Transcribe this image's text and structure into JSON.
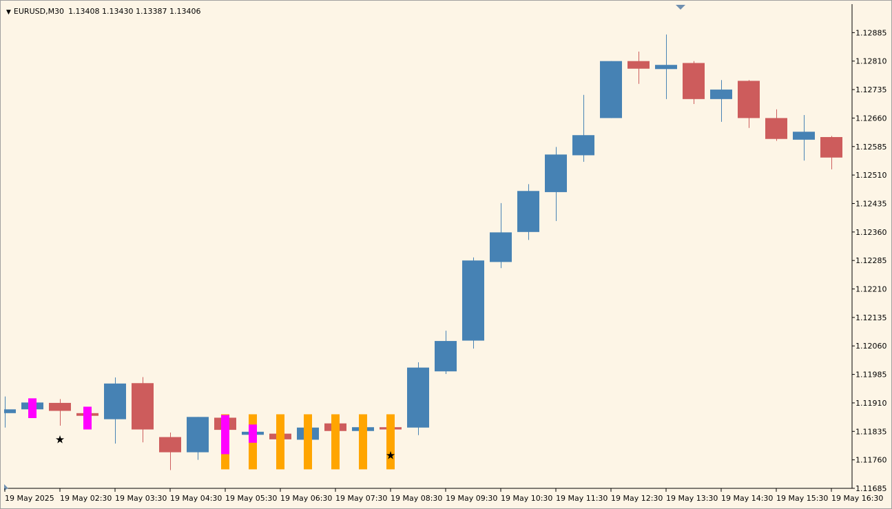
{
  "header": {
    "symbol": "EURUSD,M30",
    "ohlc": "1.13408 1.13430 1.13387 1.13406"
  },
  "colors": {
    "background": "#fdf5e6",
    "bull": "#4682b4",
    "bear": "#cd5c5c",
    "magenta": "#ff00ff",
    "orange": "#ffa500",
    "axis": "#000000"
  },
  "chart_data": {
    "type": "candlestick",
    "timeframe": "M30",
    "ylim": [
      1.11685,
      1.1296
    ],
    "y_ticks": [
      "1.12885",
      "1.12810",
      "1.12735",
      "1.12660",
      "1.12585",
      "1.12510",
      "1.12435",
      "1.12360",
      "1.12285",
      "1.12210",
      "1.12135",
      "1.12060",
      "1.11985",
      "1.11910",
      "1.11835",
      "1.11760",
      "1.11685"
    ],
    "x_labels": [
      {
        "index": 0,
        "text": "19 May 2025"
      },
      {
        "index": 2,
        "text": "19 May 02:30"
      },
      {
        "index": 4,
        "text": "19 May 03:30"
      },
      {
        "index": 6,
        "text": "19 May 04:30"
      },
      {
        "index": 8,
        "text": "19 May 05:30"
      },
      {
        "index": 10,
        "text": "19 May 06:30"
      },
      {
        "index": 12,
        "text": "19 May 07:30"
      },
      {
        "index": 14,
        "text": "19 May 08:30"
      },
      {
        "index": 16,
        "text": "19 May 09:30"
      },
      {
        "index": 18,
        "text": "19 May 10:30"
      },
      {
        "index": 20,
        "text": "19 May 11:30"
      },
      {
        "index": 22,
        "text": "19 May 12:30"
      },
      {
        "index": 24,
        "text": "19 May 13:30"
      },
      {
        "index": 26,
        "text": "19 May 14:30"
      },
      {
        "index": 28,
        "text": "19 May 15:30"
      },
      {
        "index": 30,
        "text": "19 May 16:30"
      }
    ],
    "candles": [
      {
        "o": 1.11883,
        "h": 1.11927,
        "l": 1.11845,
        "c": 1.11893
      },
      {
        "o": 1.11893,
        "h": 1.11921,
        "l": 1.11893,
        "c": 1.11911
      },
      {
        "o": 1.1191,
        "h": 1.1192,
        "l": 1.1185,
        "c": 1.11889
      },
      {
        "o": 1.11883,
        "h": 1.11883,
        "l": 1.1187,
        "c": 1.11876
      },
      {
        "o": 1.11867,
        "h": 1.11977,
        "l": 1.11803,
        "c": 1.11961
      },
      {
        "o": 1.11962,
        "h": 1.11978,
        "l": 1.11806,
        "c": 1.1184
      },
      {
        "o": 1.1182,
        "h": 1.11832,
        "l": 1.11733,
        "c": 1.1178
      },
      {
        "o": 1.1178,
        "h": 1.11873,
        "l": 1.1176,
        "c": 1.11873
      },
      {
        "o": 1.11871,
        "h": 1.11876,
        "l": 1.11825,
        "c": 1.11839
      },
      {
        "o": 1.11826,
        "h": 1.1184,
        "l": 1.11815,
        "c": 1.11834
      },
      {
        "o": 1.11829,
        "h": 1.11843,
        "l": 1.1181,
        "c": 1.11814
      },
      {
        "o": 1.11813,
        "h": 1.11845,
        "l": 1.11813,
        "c": 1.11845
      },
      {
        "o": 1.11856,
        "h": 1.11866,
        "l": 1.11831,
        "c": 1.11836
      },
      {
        "o": 1.11836,
        "h": 1.11846,
        "l": 1.11836,
        "c": 1.11846
      },
      {
        "o": 1.11846,
        "h": 1.11846,
        "l": 1.11839,
        "c": 1.1184
      },
      {
        "o": 1.11845,
        "h": 1.12017,
        "l": 1.11825,
        "c": 1.12003
      },
      {
        "o": 1.11993,
        "h": 1.121,
        "l": 1.11986,
        "c": 1.12073
      },
      {
        "o": 1.12074,
        "h": 1.12293,
        "l": 1.12053,
        "c": 1.12285
      },
      {
        "o": 1.12281,
        "h": 1.12436,
        "l": 1.12265,
        "c": 1.12359
      },
      {
        "o": 1.1236,
        "h": 1.12486,
        "l": 1.12339,
        "c": 1.12468
      },
      {
        "o": 1.12465,
        "h": 1.12584,
        "l": 1.12389,
        "c": 1.12564
      },
      {
        "o": 1.12562,
        "h": 1.12721,
        "l": 1.12545,
        "c": 1.12615
      },
      {
        "o": 1.1266,
        "h": 1.1281,
        "l": 1.1266,
        "c": 1.1281
      },
      {
        "o": 1.1281,
        "h": 1.12835,
        "l": 1.1275,
        "c": 1.1279
      },
      {
        "o": 1.12789,
        "h": 1.1288,
        "l": 1.1271,
        "c": 1.128
      },
      {
        "o": 1.12805,
        "h": 1.1281,
        "l": 1.12697,
        "c": 1.1271
      },
      {
        "o": 1.1271,
        "h": 1.1276,
        "l": 1.1265,
        "c": 1.12735
      },
      {
        "o": 1.12758,
        "h": 1.1276,
        "l": 1.12634,
        "c": 1.1266
      },
      {
        "o": 1.1266,
        "h": 1.12683,
        "l": 1.126,
        "c": 1.12605
      },
      {
        "o": 1.12603,
        "h": 1.12668,
        "l": 1.12548,
        "c": 1.12624
      },
      {
        "o": 1.1261,
        "h": 1.12613,
        "l": 1.12525,
        "c": 1.12556
      }
    ],
    "magenta_bars": [
      {
        "index": 1,
        "top": 1.11922,
        "bottom": 1.1187
      },
      {
        "index": 3,
        "top": 1.119,
        "bottom": 1.1184
      },
      {
        "index": 8,
        "top": 1.11878,
        "bottom": 1.11775
      },
      {
        "index": 9,
        "top": 1.11853,
        "bottom": 1.11805
      }
    ],
    "orange_bars": [
      {
        "index": 8,
        "top": 1.1188,
        "bottom": 1.11735
      },
      {
        "index": 9,
        "top": 1.1188,
        "bottom": 1.11735
      },
      {
        "index": 10,
        "top": 1.1188,
        "bottom": 1.11735
      },
      {
        "index": 11,
        "top": 1.1188,
        "bottom": 1.11735
      },
      {
        "index": 12,
        "top": 1.1188,
        "bottom": 1.11735
      },
      {
        "index": 13,
        "top": 1.1188,
        "bottom": 1.11735
      },
      {
        "index": 14,
        "top": 1.1188,
        "bottom": 1.11735
      }
    ],
    "star_markers": [
      {
        "index": 2,
        "price": 1.11815
      },
      {
        "index": 14,
        "price": 1.11773
      }
    ]
  }
}
